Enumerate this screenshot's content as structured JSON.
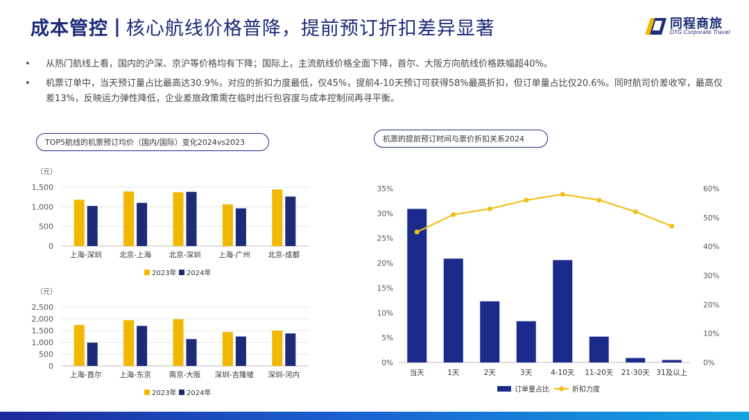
{
  "header": {
    "title_main": "成本管控",
    "separator": "|",
    "title_sub": "核心航线价格普降，提前预订折扣差异显著"
  },
  "logo": {
    "name": "同程商旅",
    "tagline": "DTG Corporate Travel"
  },
  "bullets": [
    {
      "marker": "•",
      "text": "从热门航线上看，国内的沪深、京沪等价格均有下降；国际上，主流航线价格全面下降，首尔、大阪方向航线价格跌幅超40%。"
    },
    {
      "marker": "•",
      "text": "机票订单中，当天预订量占比最高达30.9%，对应的折扣力度最低，仅45%，提前4-10天预订可获得58%最高折扣，但订单量占比仅20.6%。同时航司价差收窄，最高仅差13%，反映运力弹性降低，企业差旅政策需在临时出行包容度与成本控制间再寻平衡。"
    }
  ],
  "left_panel_label": "TOP5航线的机票预订均价（国内/国际）变化2024vs2023",
  "right_panel_label": "机票的提前预订时间与票价折扣关系2024",
  "colors": {
    "series_2023": "#f0b800",
    "series_2024": "#1c2a78",
    "bar_orders": "#1c2a8c",
    "line_discount": "#f2bf1a",
    "title": "#1c2a78"
  },
  "chart_data": [
    {
      "type": "bar",
      "unit_label": "（元）",
      "categories": [
        "上海-深圳",
        "北京-上海",
        "北京-深圳",
        "上海-广州",
        "北京-成都"
      ],
      "series": [
        {
          "name": "2023年",
          "values": [
            1180,
            1390,
            1370,
            1060,
            1440
          ]
        },
        {
          "name": "2024年",
          "values": [
            1020,
            1100,
            1380,
            960,
            1260
          ]
        }
      ],
      "yticks": [
        "0",
        "500",
        "1,000",
        "1,500"
      ],
      "ylim": [
        0,
        1500
      ],
      "legend_position": "bottom"
    },
    {
      "type": "bar",
      "unit_label": "（元）",
      "categories": [
        "上海-首尔",
        "上海-东京",
        "南京-大阪",
        "深圳-吉隆坡",
        "深圳-河内"
      ],
      "series": [
        {
          "name": "2023年",
          "values": [
            1740,
            1940,
            1980,
            1440,
            1500
          ]
        },
        {
          "name": "2024年",
          "values": [
            990,
            1700,
            1140,
            1250,
            1380
          ]
        }
      ],
      "yticks": [
        "0",
        "500",
        "1,000",
        "1,500",
        "2,000",
        "2,500"
      ],
      "ylim": [
        0,
        2500
      ],
      "legend_position": "bottom"
    },
    {
      "type": "bar+line",
      "categories": [
        "当天",
        "1天",
        "2天",
        "3天",
        "4-10天",
        "11-20天",
        "21-30天",
        "31及以上"
      ],
      "series": [
        {
          "name": "订单量占比",
          "type": "bar",
          "axis": "left",
          "values": [
            30.9,
            20.9,
            12.3,
            8.3,
            20.6,
            5.2,
            0.9,
            0.5
          ]
        },
        {
          "name": "折扣力度",
          "type": "line",
          "axis": "right",
          "values": [
            45,
            51,
            53,
            56,
            58,
            56,
            52,
            47
          ]
        }
      ],
      "yticks_left": [
        "0%",
        "5%",
        "10%",
        "15%",
        "20%",
        "25%",
        "30%",
        "35%"
      ],
      "ylim_left": [
        0,
        35
      ],
      "yticks_right": [
        "0%",
        "10%",
        "20%",
        "30%",
        "40%",
        "50%",
        "60%"
      ],
      "ylim_right": [
        0,
        60
      ],
      "legend_position": "bottom"
    }
  ]
}
